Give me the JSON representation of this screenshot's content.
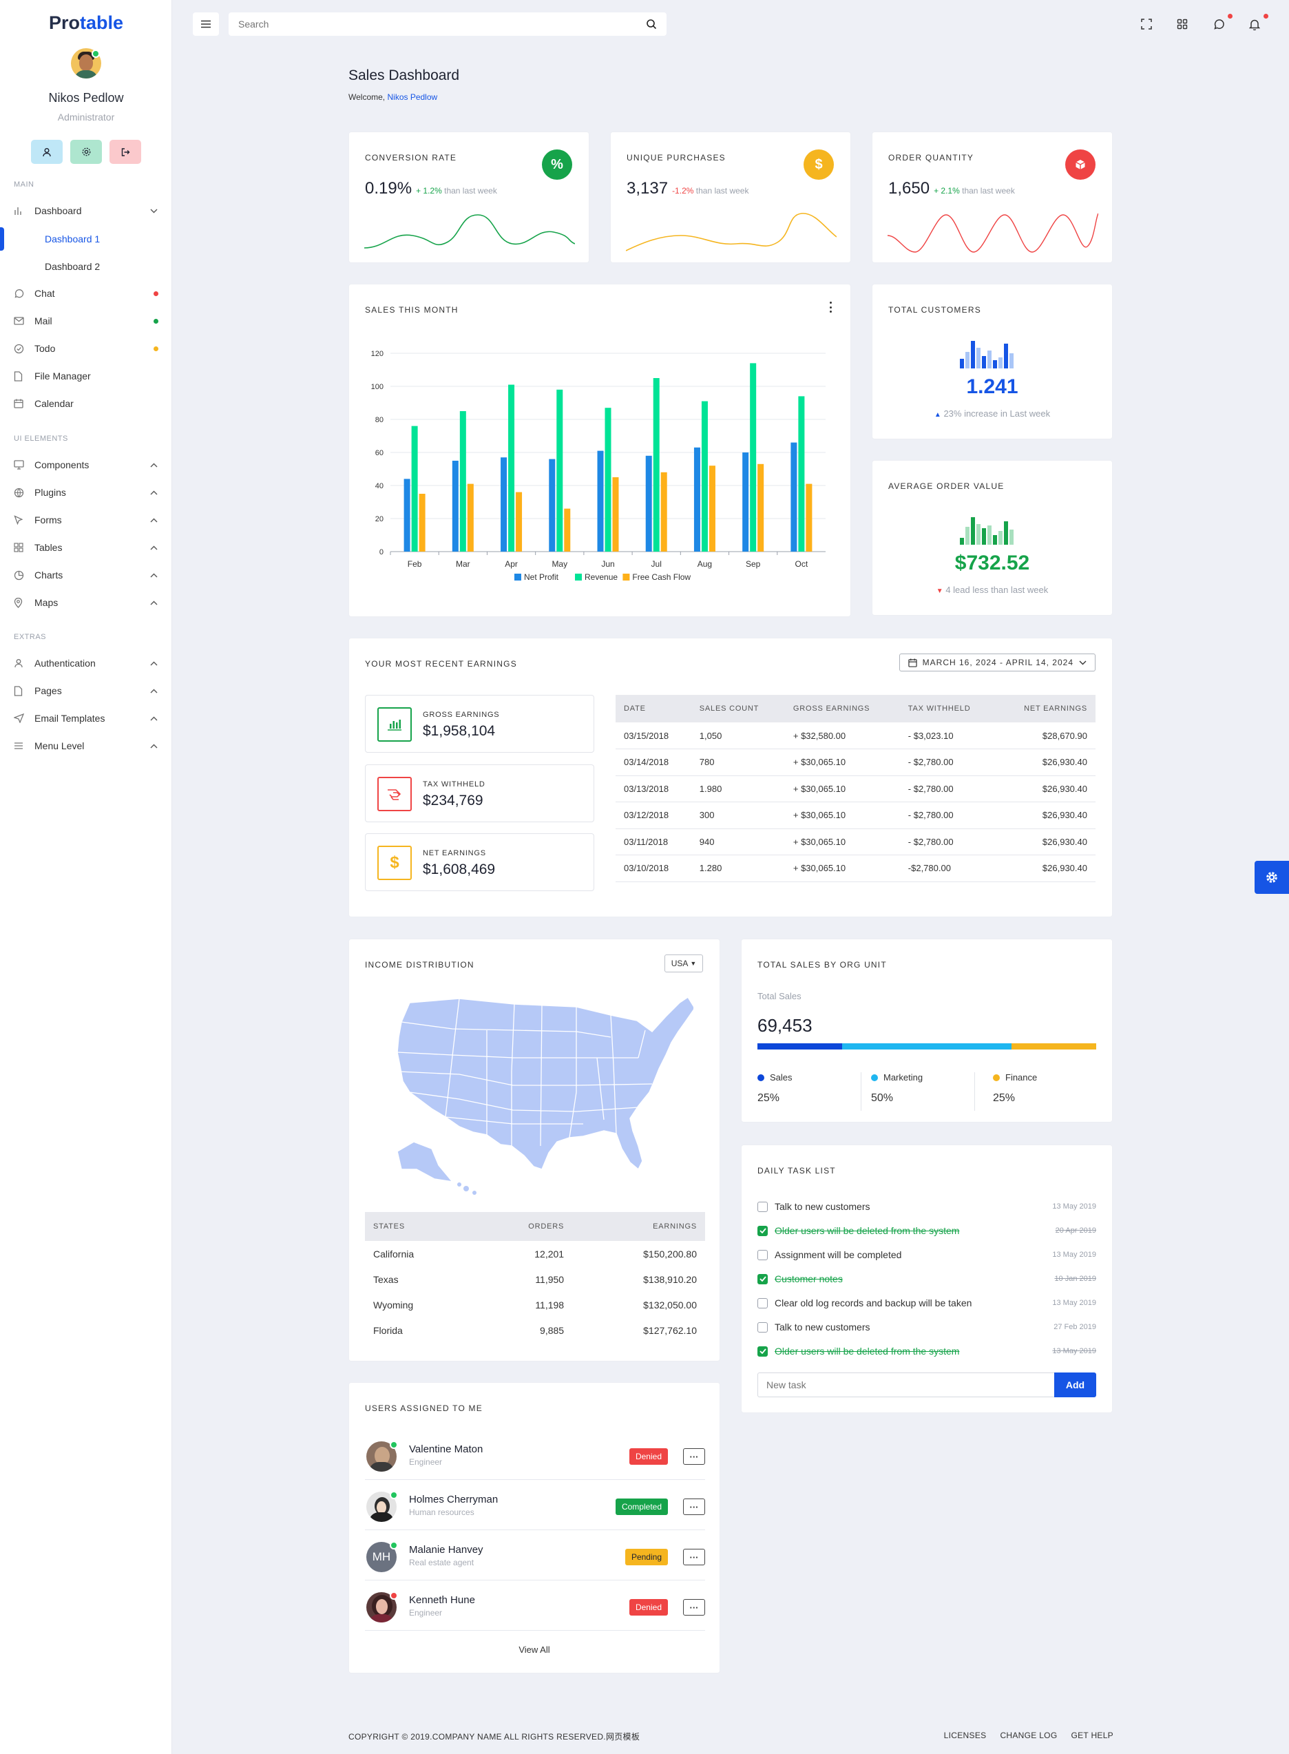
{
  "brand": {
    "part1": "Pro",
    "part2": "table"
  },
  "user": {
    "name": "Nikos Pedlow",
    "role": "Administrator"
  },
  "sidebar": {
    "sections": {
      "main": "MAIN",
      "ui": "UI ELEMENTS",
      "extras": "EXTRAS"
    },
    "dashboard": "Dashboard",
    "dashboard1": "Dashboard 1",
    "dashboard2": "Dashboard 2",
    "items": [
      {
        "label": "Chat",
        "dot": "#ef4444"
      },
      {
        "label": "Mail",
        "dot": "#16a34a"
      },
      {
        "label": "Todo",
        "dot": "#f5b51f"
      },
      {
        "label": "File Manager"
      },
      {
        "label": "Calendar"
      }
    ],
    "ui_items": [
      "Components",
      "Plugins",
      "Forms",
      "Tables",
      "Charts",
      "Maps"
    ],
    "extra_items": [
      "Authentication",
      "Pages",
      "Email Templates",
      "Menu Level"
    ]
  },
  "topbar": {
    "search_placeholder": "Search"
  },
  "page": {
    "title": "Sales Dashboard",
    "welcome": "Welcome,",
    "welcome_user": "Nikos Pedlow"
  },
  "kpis": [
    {
      "title": "CONVERSION RATE",
      "value": "0.19%",
      "change": "+ 1.2%",
      "change_suffix": "than last week",
      "icon": "%",
      "color": "#16a34a"
    },
    {
      "title": "UNIQUE PURCHASES",
      "value": "3,137",
      "change": "-1.2%",
      "change_suffix": "than last week",
      "icon": "$",
      "color": "#f5b51f"
    },
    {
      "title": "ORDER QUANTITY",
      "value": "1,650",
      "change": "+ 2.1%",
      "change_suffix": "than last week",
      "icon": "box-icon",
      "color": "#ef4444"
    }
  ],
  "sales_chart": {
    "title": "SALES THIS MONTH"
  },
  "total_customers": {
    "title": "TOTAL CUSTOMERS",
    "value": "1.241",
    "note": "23% increase in Last week"
  },
  "avg_order": {
    "title": "AVERAGE ORDER VALUE",
    "value": "$732.52",
    "note": "4 lead less than last week"
  },
  "chart_data": {
    "type": "bar",
    "categories": [
      "Feb",
      "Mar",
      "Apr",
      "May",
      "Jun",
      "Jul",
      "Aug",
      "Sep",
      "Oct"
    ],
    "series": [
      {
        "name": "Net Profit",
        "color": "#1e88e5",
        "values": [
          44,
          55,
          57,
          56,
          61,
          58,
          63,
          60,
          66
        ]
      },
      {
        "name": "Revenue",
        "color": "#00e396",
        "values": [
          76,
          85,
          101,
          98,
          87,
          105,
          91,
          114,
          94
        ]
      },
      {
        "name": "Free Cash Flow",
        "color": "#feb019",
        "values": [
          35,
          41,
          36,
          26,
          45,
          48,
          52,
          53,
          41
        ]
      }
    ],
    "ylim": [
      0,
      120
    ],
    "yticks": [
      0,
      20,
      40,
      60,
      80,
      100,
      120
    ],
    "grid": true,
    "legend": "bottom"
  },
  "earnings": {
    "title": "YOUR MOST RECENT EARNINGS",
    "date_range": "MARCH 16, 2024 - APRIL 14, 2024",
    "boxes": [
      {
        "label": "GROSS EARNINGS",
        "value": "$1,958,104",
        "color": "#16a34a"
      },
      {
        "label": "TAX WITHHELD",
        "value": "$234,769",
        "color": "#ef4444"
      },
      {
        "label": "NET EARNINGS",
        "value": "$1,608,469",
        "color": "#f5b51f"
      }
    ],
    "columns": [
      "DATE",
      "SALES COUNT",
      "GROSS EARNINGS",
      "TAX WITHHELD",
      "NET EARNINGS"
    ],
    "rows": [
      [
        "03/15/2018",
        "1,050",
        "+ $32,580.00",
        "- $3,023.10",
        "$28,670.90"
      ],
      [
        "03/14/2018",
        "780",
        "+ $30,065.10",
        "- $2,780.00",
        "$26,930.40"
      ],
      [
        "03/13/2018",
        "1.980",
        "+ $30,065.10",
        "- $2,780.00",
        "$26,930.40"
      ],
      [
        "03/12/2018",
        "300",
        "+ $30,065.10",
        "- $2,780.00",
        "$26,930.40"
      ],
      [
        "03/11/2018",
        "940",
        "+ $30,065.10",
        "- $2,780.00",
        "$26,930.40"
      ],
      [
        "03/10/2018",
        "1.280",
        "+ $30,065.10",
        "-$2,780.00",
        "$26,930.40"
      ]
    ]
  },
  "income": {
    "title": "INCOME DISTRIBUTION",
    "country": "USA",
    "columns": [
      "STATES",
      "ORDERS",
      "EARNINGS"
    ],
    "rows": [
      [
        "California",
        "12,201",
        "$150,200.80"
      ],
      [
        "Texas",
        "11,950",
        "$138,910.20"
      ],
      [
        "Wyoming",
        "11,198",
        "$132,050.00"
      ],
      [
        "Florida",
        "9,885",
        "$127,762.10"
      ]
    ]
  },
  "org_sales": {
    "title": "TOTAL SALES BY ORG UNIT",
    "label": "Total Sales",
    "value": "69,453",
    "units": [
      {
        "name": "Sales",
        "pct": "25%",
        "share": 0.25,
        "color": "#0d47d9"
      },
      {
        "name": "Marketing",
        "pct": "50%",
        "share": 0.5,
        "color": "#1fb6f0"
      },
      {
        "name": "Finance",
        "pct": "25%",
        "share": 0.25,
        "color": "#f5b51f"
      }
    ]
  },
  "tasks": {
    "title": "DAILY TASK LIST",
    "items": [
      {
        "text": "Talk to new customers",
        "date": "13 May 2019",
        "done": false
      },
      {
        "text": "Older users will be deleted from the system",
        "date": "20 Apr 2019",
        "done": true
      },
      {
        "text": "Assignment will be completed",
        "date": "13 May 2019",
        "done": false
      },
      {
        "text": "Customer notes",
        "date": "10 Jan 2019",
        "done": true
      },
      {
        "text": "Clear old log records and backup will be taken",
        "date": "13 May 2019",
        "done": false
      },
      {
        "text": "Talk to new customers",
        "date": "27 Feb 2019",
        "done": false
      },
      {
        "text": "Older users will be deleted from the system",
        "date": "13 May 2019",
        "done": true
      }
    ],
    "new_placeholder": "New task",
    "add_label": "Add"
  },
  "users": {
    "title": "USERS ASSIGNED TO ME",
    "items": [
      {
        "name": "Valentine Maton",
        "role": "Engineer",
        "status": "Denied",
        "color": "#ef4444"
      },
      {
        "name": "Holmes Cherryman",
        "role": "Human resources",
        "status": "Completed",
        "color": "#16a34a"
      },
      {
        "name": "Malanie Hanvey",
        "role": "Real estate agent",
        "status": "Pending",
        "color": "#f5b51f",
        "initials": "MH"
      },
      {
        "name": "Kenneth Hune",
        "role": "Engineer",
        "status": "Denied",
        "color": "#ef4444"
      }
    ],
    "view_all": "View All"
  },
  "footer": {
    "copyright": "COPYRIGHT © 2019.COMPANY NAME ALL RIGHTS RESERVED.网页模板",
    "links": [
      "LICENSES",
      "CHANGE LOG",
      "GET HELP"
    ]
  }
}
